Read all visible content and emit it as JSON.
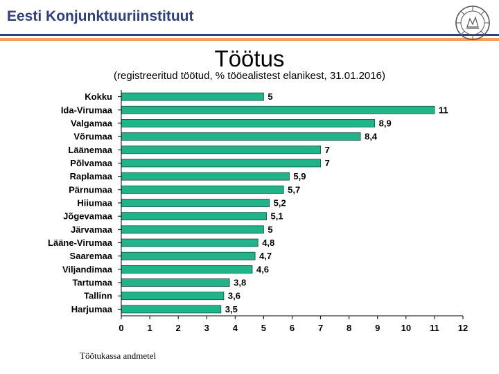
{
  "header": {
    "org_name": "Eesti Konjunktuuriinstituut",
    "logo_icon": "institute-seal-icon",
    "accent_color": "#2e3f7e",
    "rule_color": "#f0a060"
  },
  "footnote": "Töötukassa andmetel",
  "chart_data": {
    "type": "bar",
    "orientation": "horizontal",
    "title": "Töötus",
    "subtitle": "(registreeritud töötud, % tööealistest elanikest, 31.01.2016)",
    "categories": [
      "Kokku",
      "Ida-Virumaa",
      "Valgamaa",
      "Võrumaa",
      "Läänemaa",
      "Põlvamaa",
      "Raplamaa",
      "Pärnumaa",
      "Hiiumaa",
      "Jõgevamaa",
      "Järvamaa",
      "Lääne-Virumaa",
      "Saaremaa",
      "Viljandimaa",
      "Tartumaa",
      "Tallinn",
      "Harjumaa"
    ],
    "values": [
      5,
      11,
      8.9,
      8.4,
      7,
      7,
      5.9,
      5.7,
      5.2,
      5.1,
      5,
      4.8,
      4.7,
      4.6,
      3.8,
      3.6,
      3.5
    ],
    "value_labels": [
      "5",
      "11",
      "8,9",
      "8,4",
      "7",
      "7",
      "5,9",
      "5,7",
      "5,2",
      "5,1",
      "5",
      "4,8",
      "4,7",
      "4,6",
      "3,8",
      "3,6",
      "3,5"
    ],
    "xlim": [
      0,
      12
    ],
    "xticks": [
      0,
      1,
      2,
      3,
      4,
      5,
      6,
      7,
      8,
      9,
      10,
      11,
      12
    ],
    "bar_color": "#1fb48a",
    "bar_edge_color": "#1a4a3a",
    "grid": false,
    "legend": "none"
  }
}
